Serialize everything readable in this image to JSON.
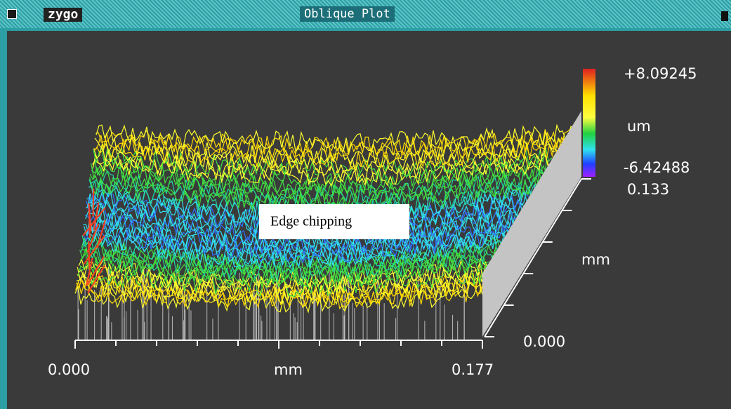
{
  "window": {
    "logo": "zygo",
    "title": "Oblique Plot"
  },
  "plot": {
    "z_max": "+8.09245",
    "z_unit": "um",
    "z_min": "-6.42488",
    "y_max": "0.133",
    "y_unit": "mm",
    "y_min": "0.000",
    "x_min": "0.000",
    "x_unit": "mm",
    "x_max": "0.177",
    "annotation": "Edge chipping"
  }
}
